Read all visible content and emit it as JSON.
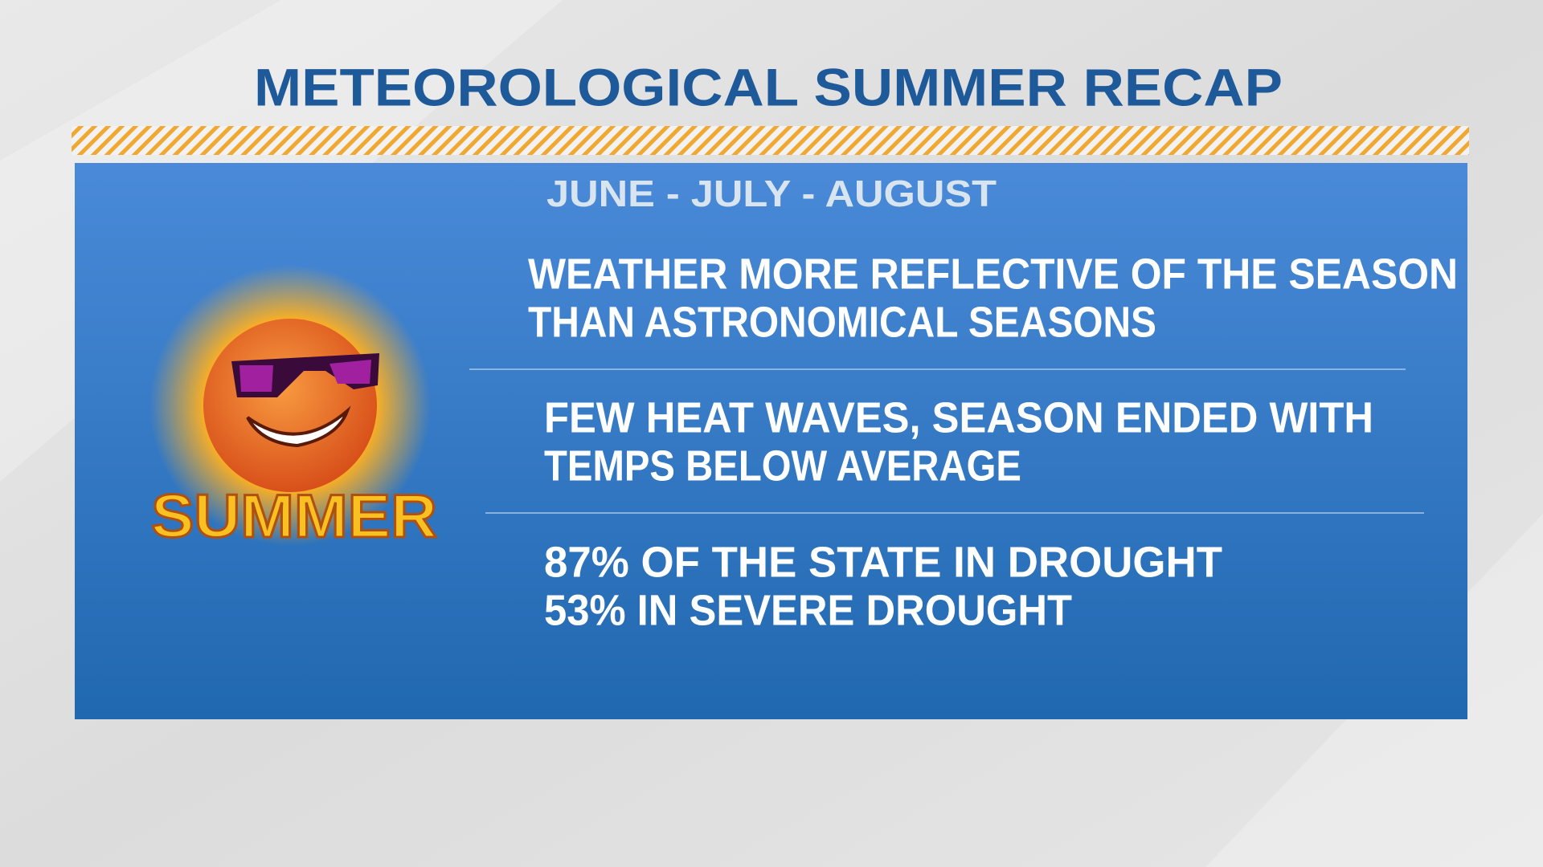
{
  "header": {
    "title": "METEOROLOGICAL SUMMER RECAP"
  },
  "panel": {
    "subtitle": "JUNE - JULY - AUGUST",
    "image_label": "SUMMER",
    "bullets": [
      {
        "lines": [
          "WEATHER MORE REFLECTIVE OF THE SEASON",
          "THAN ASTRONOMICAL SEASONS"
        ]
      },
      {
        "lines": [
          "FEW HEAT WAVES, SEASON ENDED WITH",
          "TEMPS BELOW AVERAGE"
        ]
      },
      {
        "lines": [
          "87% OF THE STATE IN DROUGHT",
          "53% IN SEVERE DROUGHT"
        ]
      }
    ]
  }
}
